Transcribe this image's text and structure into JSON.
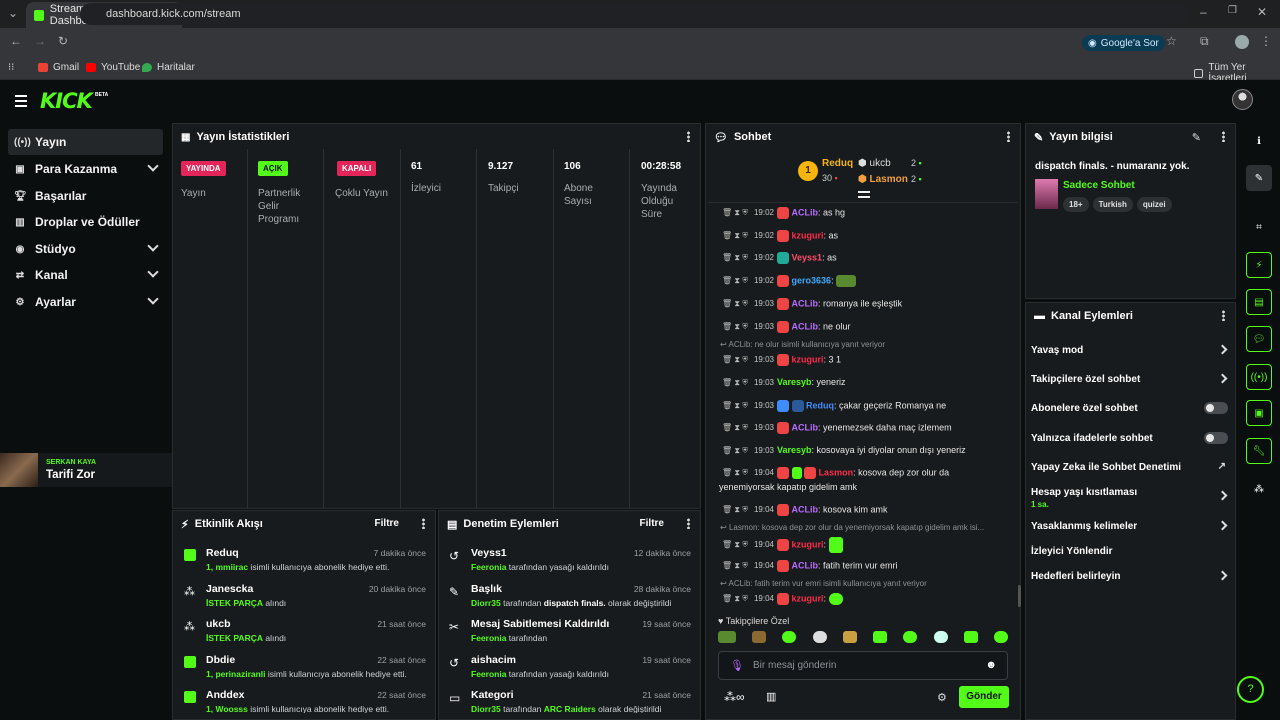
{
  "browser": {
    "tab_title": "Stream - Kick Dashboard",
    "url": "dashboard.kick.com/stream",
    "google_sor": "Google'a Sor",
    "bookmarks": [
      "Gmail",
      "YouTube",
      "Haritalar"
    ],
    "all_bookmarks": "Tüm Yer İşaretleri"
  },
  "site": {
    "logo": "KICK",
    "beta": "BETA"
  },
  "sidebar": {
    "items": [
      {
        "label": "Yayın",
        "icon": "broadcast-icon"
      },
      {
        "label": "Para Kazanma",
        "icon": "money-icon"
      },
      {
        "label": "Başarılar",
        "icon": "trophy-icon"
      },
      {
        "label": "Droplar ve Ödüller",
        "icon": "gift-icon"
      },
      {
        "label": "Stüdyo",
        "icon": "studio-icon"
      },
      {
        "label": "Kanal",
        "icon": "channel-icon"
      },
      {
        "label": "Ayarlar",
        "icon": "gear-icon"
      }
    ],
    "promo": {
      "name": "SERKAN KAYA",
      "title": "Tarifi Zor"
    }
  },
  "stats": {
    "title": "Yayın İstatistikleri",
    "badges": [
      {
        "text": "YAYINDA",
        "label": "Yayın",
        "color": "#e4255a"
      },
      {
        "text": "AÇIK",
        "label": "Partnerlik Gelir Programı",
        "color": "#53fc18"
      },
      {
        "text": "KAPALI",
        "label": "Çoklu Yayın",
        "color": "#e4255a"
      }
    ],
    "numbers": [
      {
        "value": "61",
        "label": "İzleyici"
      },
      {
        "value": "9.127",
        "label": "Takipçi"
      },
      {
        "value": "106",
        "label": "Abone Sayısı"
      },
      {
        "value": "00:28:58",
        "label": "Yayında Olduğu Süre"
      }
    ]
  },
  "activity": {
    "title": "Etkinlik Akışı",
    "filter": "Filtre",
    "rows": [
      {
        "name": "Reduq",
        "time": "7 dakika önce",
        "hl": "1, mmiirac",
        "rest": " isimli kullanıcıya abonelik hediye etti."
      },
      {
        "name": "Janescka",
        "time": "20 dakika önce",
        "hl": "İSTEK PARÇA",
        "rest": " alındı"
      },
      {
        "name": "ukcb",
        "time": "21 saat önce",
        "hl": "İSTEK PARÇA",
        "rest": " alındı"
      },
      {
        "name": "Dbdie",
        "time": "22 saat önce",
        "hl": "1, perinaziranli",
        "rest": " isimli kullanıcıya abonelik hediye etti."
      },
      {
        "name": "Anddex",
        "time": "22 saat önce",
        "hl": "1, Woosss",
        "rest": " isimli kullanıcıya abonelik hediye etti."
      }
    ]
  },
  "moderation": {
    "title": "Denetim Eylemleri",
    "filter": "Filtre",
    "rows": [
      {
        "name": "Veyss1",
        "time": "12 dakika önce",
        "hl": "Feeronia",
        "rest": " tarafından yasağı kaldırıldı"
      },
      {
        "name": "Başlık",
        "time": "28 dakika önce",
        "hl": "Diorr35",
        "rest": " tarafından ",
        "hl2": "dispatch finals.",
        "rest2": " olarak değiştirildi"
      },
      {
        "name": "Mesaj Sabitlemesi Kaldırıldı",
        "time": "19 saat önce",
        "hl": "Feeronia",
        "rest": " tarafından"
      },
      {
        "name": "aishacim",
        "time": "19 saat önce",
        "hl": "Feeronia",
        "rest": " tarafından yasağı kaldırıldı"
      },
      {
        "name": "Kategori",
        "time": "21 saat önce",
        "hl": "Diorr35",
        "rest": " tarafından ",
        "hl2": "ARC Raiders",
        "rest2": " olarak değiştirildi"
      }
    ]
  },
  "chat": {
    "title": "Sohbet",
    "top": {
      "first_name": "Reduq",
      "first_value": "30",
      "second_name": "ukcb",
      "second_value": "2",
      "third_name": "Lasmon",
      "third_value": "2"
    },
    "messages": [
      {
        "time": "19:02",
        "user": "ACLib",
        "color": "#b76cff",
        "text": ": as hg"
      },
      {
        "time": "19:02",
        "user": "kzuguri",
        "color": "#ff2c4a",
        "text": ": as"
      },
      {
        "time": "19:02",
        "user": "Veyss1",
        "color": "#ff4d6a",
        "text": ": as"
      },
      {
        "time": "19:02",
        "user": "gero3636",
        "color": "#3fa9ff",
        "text": ":"
      },
      {
        "time": "19:03",
        "user": "ACLib",
        "color": "#b76cff",
        "text": ": romanya ile eşleştik"
      },
      {
        "time": "19:03",
        "user": "ACLib",
        "color": "#b76cff",
        "text": ": ne olur"
      },
      {
        "reply": "ACLib: ne olur isimli kullanıcıya yanıt veriyor"
      },
      {
        "time": "19:03",
        "user": "kzuguri",
        "color": "#ff2c4a",
        "text": ": 3 1"
      },
      {
        "time": "19:03",
        "user": "Varesyb",
        "color": "#53fc18",
        "text": ": yeneriz"
      },
      {
        "time": "19:03",
        "user": "Reduq",
        "color": "#3f8cff",
        "text": ": çakar geçeriz Romanya ne"
      },
      {
        "time": "19:03",
        "user": "ACLib",
        "color": "#b76cff",
        "text": ": yenemezsek daha maç izlemem"
      },
      {
        "time": "19:03",
        "user": "Varesyb",
        "color": "#53fc18",
        "text": ": kosovaya iyi diyolar onun dışı yeneriz"
      },
      {
        "time": "19:04",
        "user": "Lasmon",
        "color": "#ff2c4a",
        "text": ": kosova dep zor olur da"
      },
      {
        "cont": "yenemiyorsak kapatıp gidelim amk"
      },
      {
        "time": "19:04",
        "user": "ACLib",
        "color": "#b76cff",
        "text": ": kosova kim amk"
      },
      {
        "reply": "Lasmon: kosova dep zor olur da yenemiyorsak kapatıp gidelim amk isi..."
      },
      {
        "time": "19:04",
        "user": "kzuguri",
        "color": "#ff2c4a",
        "text": ":"
      },
      {
        "time": "19:04",
        "user": "ACLib",
        "color": "#b76cff",
        "text": ": fatih terim vur emri"
      },
      {
        "reply": "ACLib: fatih terim vur emri isimli kullanıcıya yanıt veriyor"
      },
      {
        "time": "19:04",
        "user": "kzuguri",
        "color": "#ff2c4a",
        "text": ":"
      }
    ],
    "followers_only": "Takipçilere Özel",
    "placeholder": "Bir mesaj gönderin",
    "send": "Gönder"
  },
  "stream_info": {
    "title": "Yayın bilgisi",
    "stream_title": "dispatch finals. - numaranız yok.",
    "category": "Sadece Sohbet",
    "tags": [
      "18+",
      "Turkish",
      "quizei"
    ]
  },
  "channel_actions": {
    "title": "Kanal Eylemleri",
    "items": [
      {
        "label": "Yavaş mod",
        "kind": "arrow"
      },
      {
        "label": "Takipçilere özel sohbet",
        "kind": "arrow"
      },
      {
        "label": "Abonelere özel sohbet",
        "kind": "toggle"
      },
      {
        "label": "Yalnızca ifadelerle sohbet",
        "kind": "toggle"
      },
      {
        "label": "Yapay Zeka ile Sohbet Denetimi",
        "kind": "external"
      },
      {
        "label": "Hesap yaşı kısıtlaması",
        "kind": "arrow",
        "sub": "1 sa."
      },
      {
        "label": "Yasaklanmış kelimeler",
        "kind": "arrow"
      },
      {
        "label": "İzleyici Yönlendir",
        "kind": "none"
      },
      {
        "label": "Hedefleri belirleyin",
        "kind": "arrow"
      }
    ]
  }
}
